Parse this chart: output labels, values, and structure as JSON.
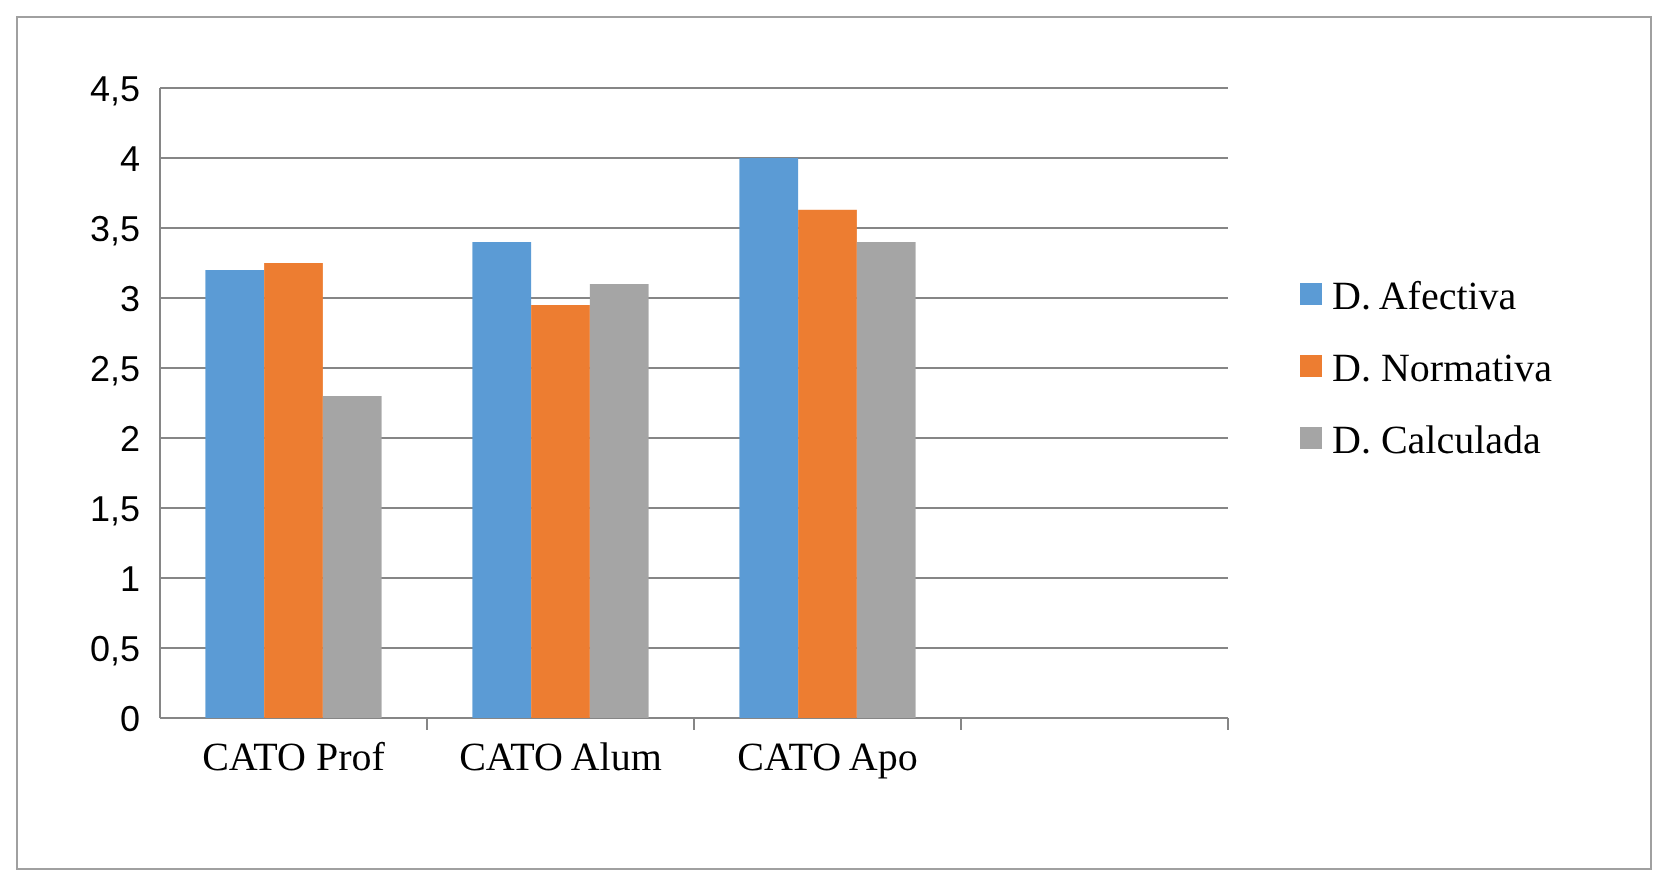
{
  "chart_data": {
    "type": "bar",
    "categories": [
      "CATO Prof",
      "CATO Alum",
      "CATO Apo",
      null
    ],
    "series": [
      {
        "name": "D. Afectiva",
        "color": "#5b9bd5",
        "values": [
          3.2,
          3.4,
          4.0,
          null
        ]
      },
      {
        "name": "D. Normativa",
        "color": "#ed7d31",
        "values": [
          3.25,
          2.95,
          3.63,
          null
        ]
      },
      {
        "name": "D. Calculada",
        "color": "#a5a5a5",
        "values": [
          2.3,
          3.1,
          3.4,
          null
        ]
      }
    ],
    "ylim": [
      0,
      4.5
    ],
    "yticks": [
      0,
      {
        "value": 0.5,
        "label": "0,5"
      },
      1,
      {
        "value": 1.5,
        "label": "1,5"
      },
      2,
      {
        "value": 2.5,
        "label": "2,5"
      },
      3,
      {
        "value": 3.5,
        "label": "3,5"
      },
      4,
      {
        "value": 4.5,
        "label": "4,5"
      }
    ],
    "grid": "y",
    "legend": "right"
  }
}
